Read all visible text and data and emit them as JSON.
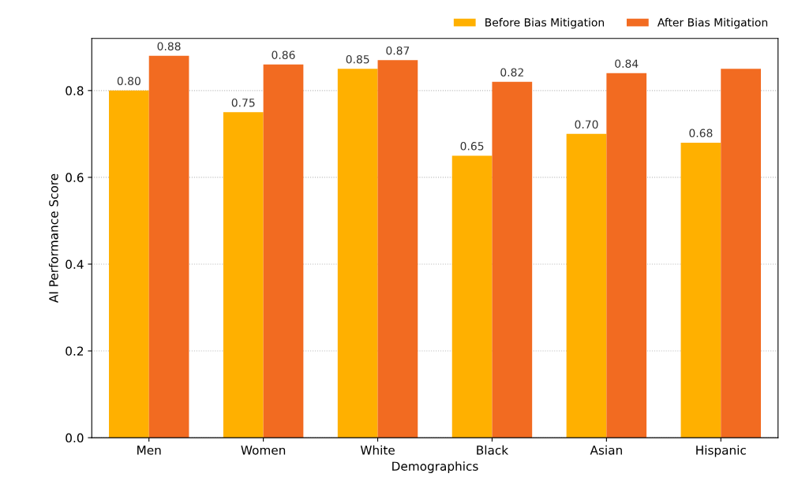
{
  "chart_data": {
    "type": "bar",
    "xlabel": "Demographics",
    "ylabel": "AI Performance Score",
    "categories": [
      "Men",
      "Women",
      "White",
      "Black",
      "Asian",
      "Hispanic"
    ],
    "series": [
      {
        "name": "Before Bias Mitigation",
        "color": "#ffb000",
        "values": [
          0.8,
          0.75,
          0.85,
          0.65,
          0.7,
          0.68
        ],
        "value_labels": [
          "0.80",
          "0.75",
          "0.85",
          "0.65",
          "0.70",
          "0.68"
        ]
      },
      {
        "name": "After Bias Mitigation",
        "color": "#f26b21",
        "values": [
          0.88,
          0.86,
          0.87,
          0.82,
          0.84,
          0.85
        ],
        "value_labels": [
          "0.88",
          "0.86",
          "0.87",
          "0.82",
          "0.84",
          null
        ]
      }
    ],
    "ylim": [
      0,
      0.92
    ],
    "yticks": [
      {
        "value": 0,
        "label": "0.0"
      },
      {
        "value": 0.2,
        "label": "0.2"
      },
      {
        "value": 0.4,
        "label": "0.4"
      },
      {
        "value": 0.6,
        "label": "0.6"
      },
      {
        "value": 0.8,
        "label": "0.8"
      }
    ],
    "grid": "y",
    "legend": "top right"
  }
}
